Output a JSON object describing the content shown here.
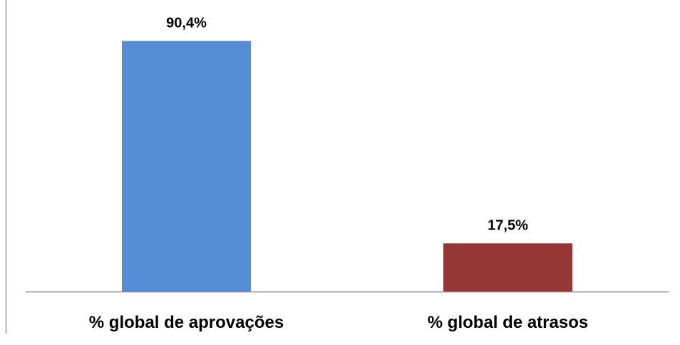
{
  "chart_data": {
    "type": "bar",
    "title": "",
    "xlabel": "",
    "ylabel": "",
    "categories": [
      "% global de aprovações",
      "% global de atrasos"
    ],
    "values": [
      90.4,
      17.5
    ],
    "value_labels": [
      "90,4%",
      "17,5%"
    ],
    "colors": [
      "#558ED5",
      "#953735"
    ],
    "ylim": [
      0,
      100
    ],
    "grid": false,
    "legend": "none"
  }
}
